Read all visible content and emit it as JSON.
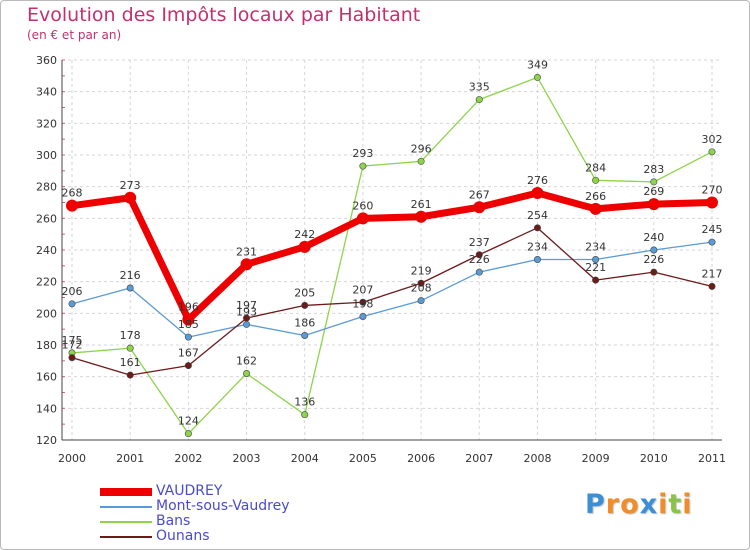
{
  "title": "Evolution des Impôts locaux par Habitant",
  "subtitle": "(en € et par an)",
  "logo": {
    "text": "Proxiti",
    "letters": [
      {
        "ch": "P",
        "color": "#3a8fd6"
      },
      {
        "ch": "r",
        "color": "#f28c28"
      },
      {
        "ch": "o",
        "color": "#f28c28"
      },
      {
        "ch": "x",
        "color": "#3a8fd6"
      },
      {
        "ch": "i",
        "color": "#f28c28"
      },
      {
        "ch": "t",
        "color": "#8bc34a"
      },
      {
        "ch": "i",
        "color": "#f28c28"
      }
    ]
  },
  "chart_data": {
    "type": "line",
    "title": "Evolution des Impôts locaux par Habitant",
    "subtitle": "(en € et par an)",
    "xlabel": "",
    "ylabel": "",
    "categories": [
      "2000",
      "2001",
      "2002",
      "2003",
      "2004",
      "2005",
      "2006",
      "2007",
      "2008",
      "2009",
      "2010",
      "2011"
    ],
    "ylim": [
      120,
      360
    ],
    "yticks": [
      120,
      140,
      160,
      180,
      200,
      220,
      240,
      260,
      280,
      300,
      320,
      340,
      360
    ],
    "grid": true,
    "legend_position": "bottom-left",
    "series": [
      {
        "name": "Bans",
        "color": "#8ed44a",
        "values": [
          175,
          178,
          124,
          162,
          136,
          293,
          296,
          335,
          349,
          284,
          283,
          302
        ]
      },
      {
        "name": "Mont-sous-Vaudrey",
        "color": "#5b9bd5",
        "values": [
          206,
          216,
          185,
          193,
          186,
          198,
          208,
          226,
          234,
          234,
          240,
          245
        ]
      },
      {
        "name": "Ounans",
        "color": "#6d1a1a",
        "values": [
          172,
          161,
          167,
          197,
          205,
          207,
          219,
          237,
          254,
          221,
          226,
          217
        ]
      },
      {
        "name": "VAUDREY",
        "color": "#ee0000",
        "values": [
          268,
          273,
          196,
          231,
          242,
          260,
          261,
          267,
          276,
          266,
          269,
          270
        ]
      }
    ],
    "legend": [
      {
        "name": "VAUDREY",
        "color": "#ee0000",
        "text_color": "#4a4acc"
      },
      {
        "name": "Mont-sous-Vaudrey",
        "color": "#5b9bd5",
        "text_color": "#4a4acc"
      },
      {
        "name": "Bans",
        "color": "#8ed44a",
        "text_color": "#4a4acc"
      },
      {
        "name": "Ounans",
        "color": "#6d1a1a",
        "text_color": "#4a4acc"
      }
    ]
  }
}
